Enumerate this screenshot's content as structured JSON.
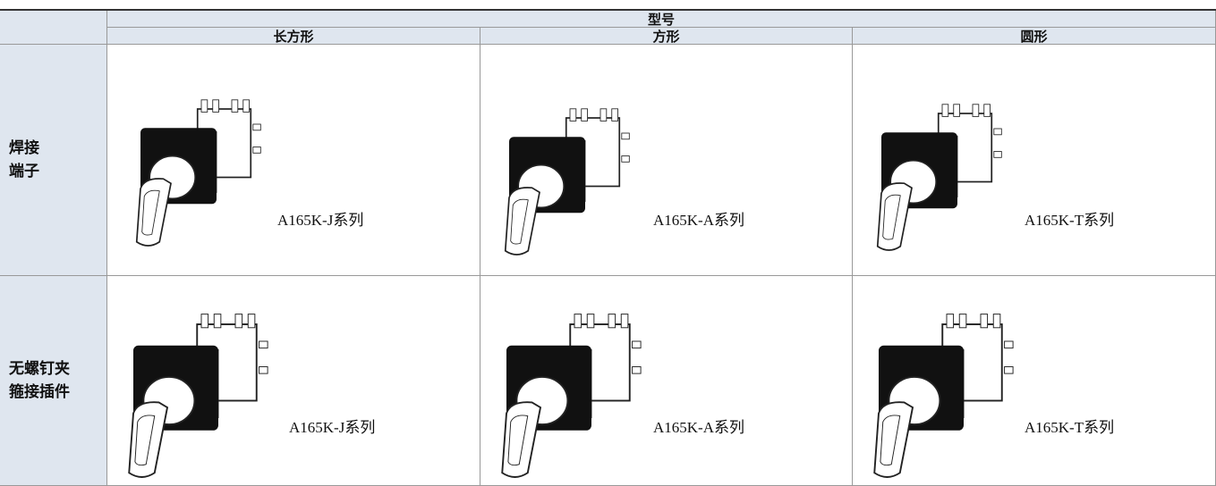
{
  "table": {
    "header": "型号",
    "columns": [
      "长方形",
      "方形",
      "圆形"
    ],
    "rows": [
      {
        "label": [
          "焊接",
          "端子"
        ],
        "cells": [
          "A165K-J系列",
          "A165K-A系列",
          "A165K-T系列"
        ]
      },
      {
        "label": [
          "无螺钉夹",
          "箍接插件"
        ],
        "cells": [
          "A165K-J系列",
          "A165K-A系列",
          "A165K-T系列"
        ]
      }
    ]
  }
}
